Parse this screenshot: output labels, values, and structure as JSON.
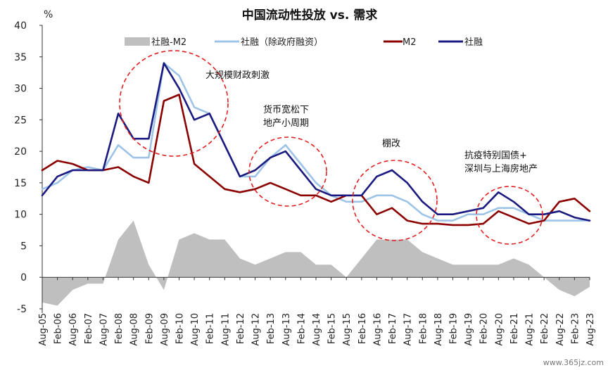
{
  "chart_data": {
    "type": "line",
    "title": "中国流动性投放 vs. 需求",
    "ylabel": "%",
    "ylim": [
      -5,
      40
    ],
    "yticks": [
      -5,
      0,
      5,
      10,
      15,
      20,
      25,
      30,
      35,
      40
    ],
    "grid": false,
    "legend_position": "top",
    "x": [
      "Aug-05",
      "Feb-06",
      "Aug-06",
      "Feb-07",
      "Aug-07",
      "Feb-08",
      "Aug-08",
      "Feb-09",
      "Aug-09",
      "Feb-10",
      "Aug-10",
      "Feb-11",
      "Aug-11",
      "Feb-12",
      "Aug-12",
      "Feb-13",
      "Aug-13",
      "Feb-14",
      "Aug-14",
      "Feb-15",
      "Aug-15",
      "Feb-16",
      "Aug-16",
      "Feb-17",
      "Aug-17",
      "Feb-18",
      "Aug-18",
      "Feb-19",
      "Aug-19",
      "Feb-20",
      "Aug-20",
      "Feb-21",
      "Aug-21",
      "Feb-22",
      "Aug-22",
      "Feb-23",
      "Aug-23"
    ],
    "series": [
      {
        "name": "社融-M2",
        "type": "area",
        "color": "#bfbfbf",
        "values": [
          -4,
          -4.5,
          -2,
          -1,
          -1,
          6,
          9,
          2,
          -2,
          6,
          7,
          6,
          6,
          3,
          2,
          3,
          4,
          4,
          2,
          2,
          0,
          3,
          6,
          6,
          6,
          4,
          3,
          2,
          2,
          2,
          2,
          3,
          2,
          0,
          -2,
          -3,
          -1.5
        ]
      },
      {
        "name": "社融（除政府融资）",
        "type": "line",
        "color": "#9dc3e6",
        "values": [
          14,
          15,
          17,
          17.5,
          17,
          21,
          19,
          19,
          34,
          32,
          27,
          26,
          21,
          16,
          16,
          19,
          21,
          18,
          15,
          13,
          12,
          12,
          13,
          13,
          12,
          10,
          9,
          9,
          10,
          10,
          11,
          11,
          10,
          9,
          9,
          9,
          9
        ]
      },
      {
        "name": "M2",
        "type": "line",
        "color": "#8b0000",
        "values": [
          17,
          18.5,
          18,
          17,
          17,
          17.5,
          16,
          15,
          28,
          29,
          18,
          16,
          14,
          13.5,
          14,
          15,
          14,
          13,
          13,
          12,
          13,
          13,
          10,
          11,
          9,
          8.5,
          8.5,
          8.3,
          8.3,
          8.5,
          10.5,
          9.5,
          8.5,
          9,
          12,
          12.5,
          10.5
        ]
      },
      {
        "name": "社融",
        "type": "line",
        "color": "#1a1a80",
        "values": [
          13,
          16,
          17,
          17,
          17,
          26,
          22,
          22,
          34,
          30,
          25,
          26,
          21,
          16,
          17,
          19,
          20,
          17,
          14,
          13,
          13,
          13,
          16,
          17,
          15,
          12,
          10,
          10,
          10.5,
          11,
          13.5,
          12,
          10,
          10,
          10.5,
          9.5,
          9
        ]
      }
    ],
    "annotations": [
      "大规模财政刺激",
      "货币宽松下\n地产小周期",
      "棚改",
      "抗疫特别国债+\n深圳与上海房地产"
    ]
  },
  "watermark": "www.365jz.com"
}
